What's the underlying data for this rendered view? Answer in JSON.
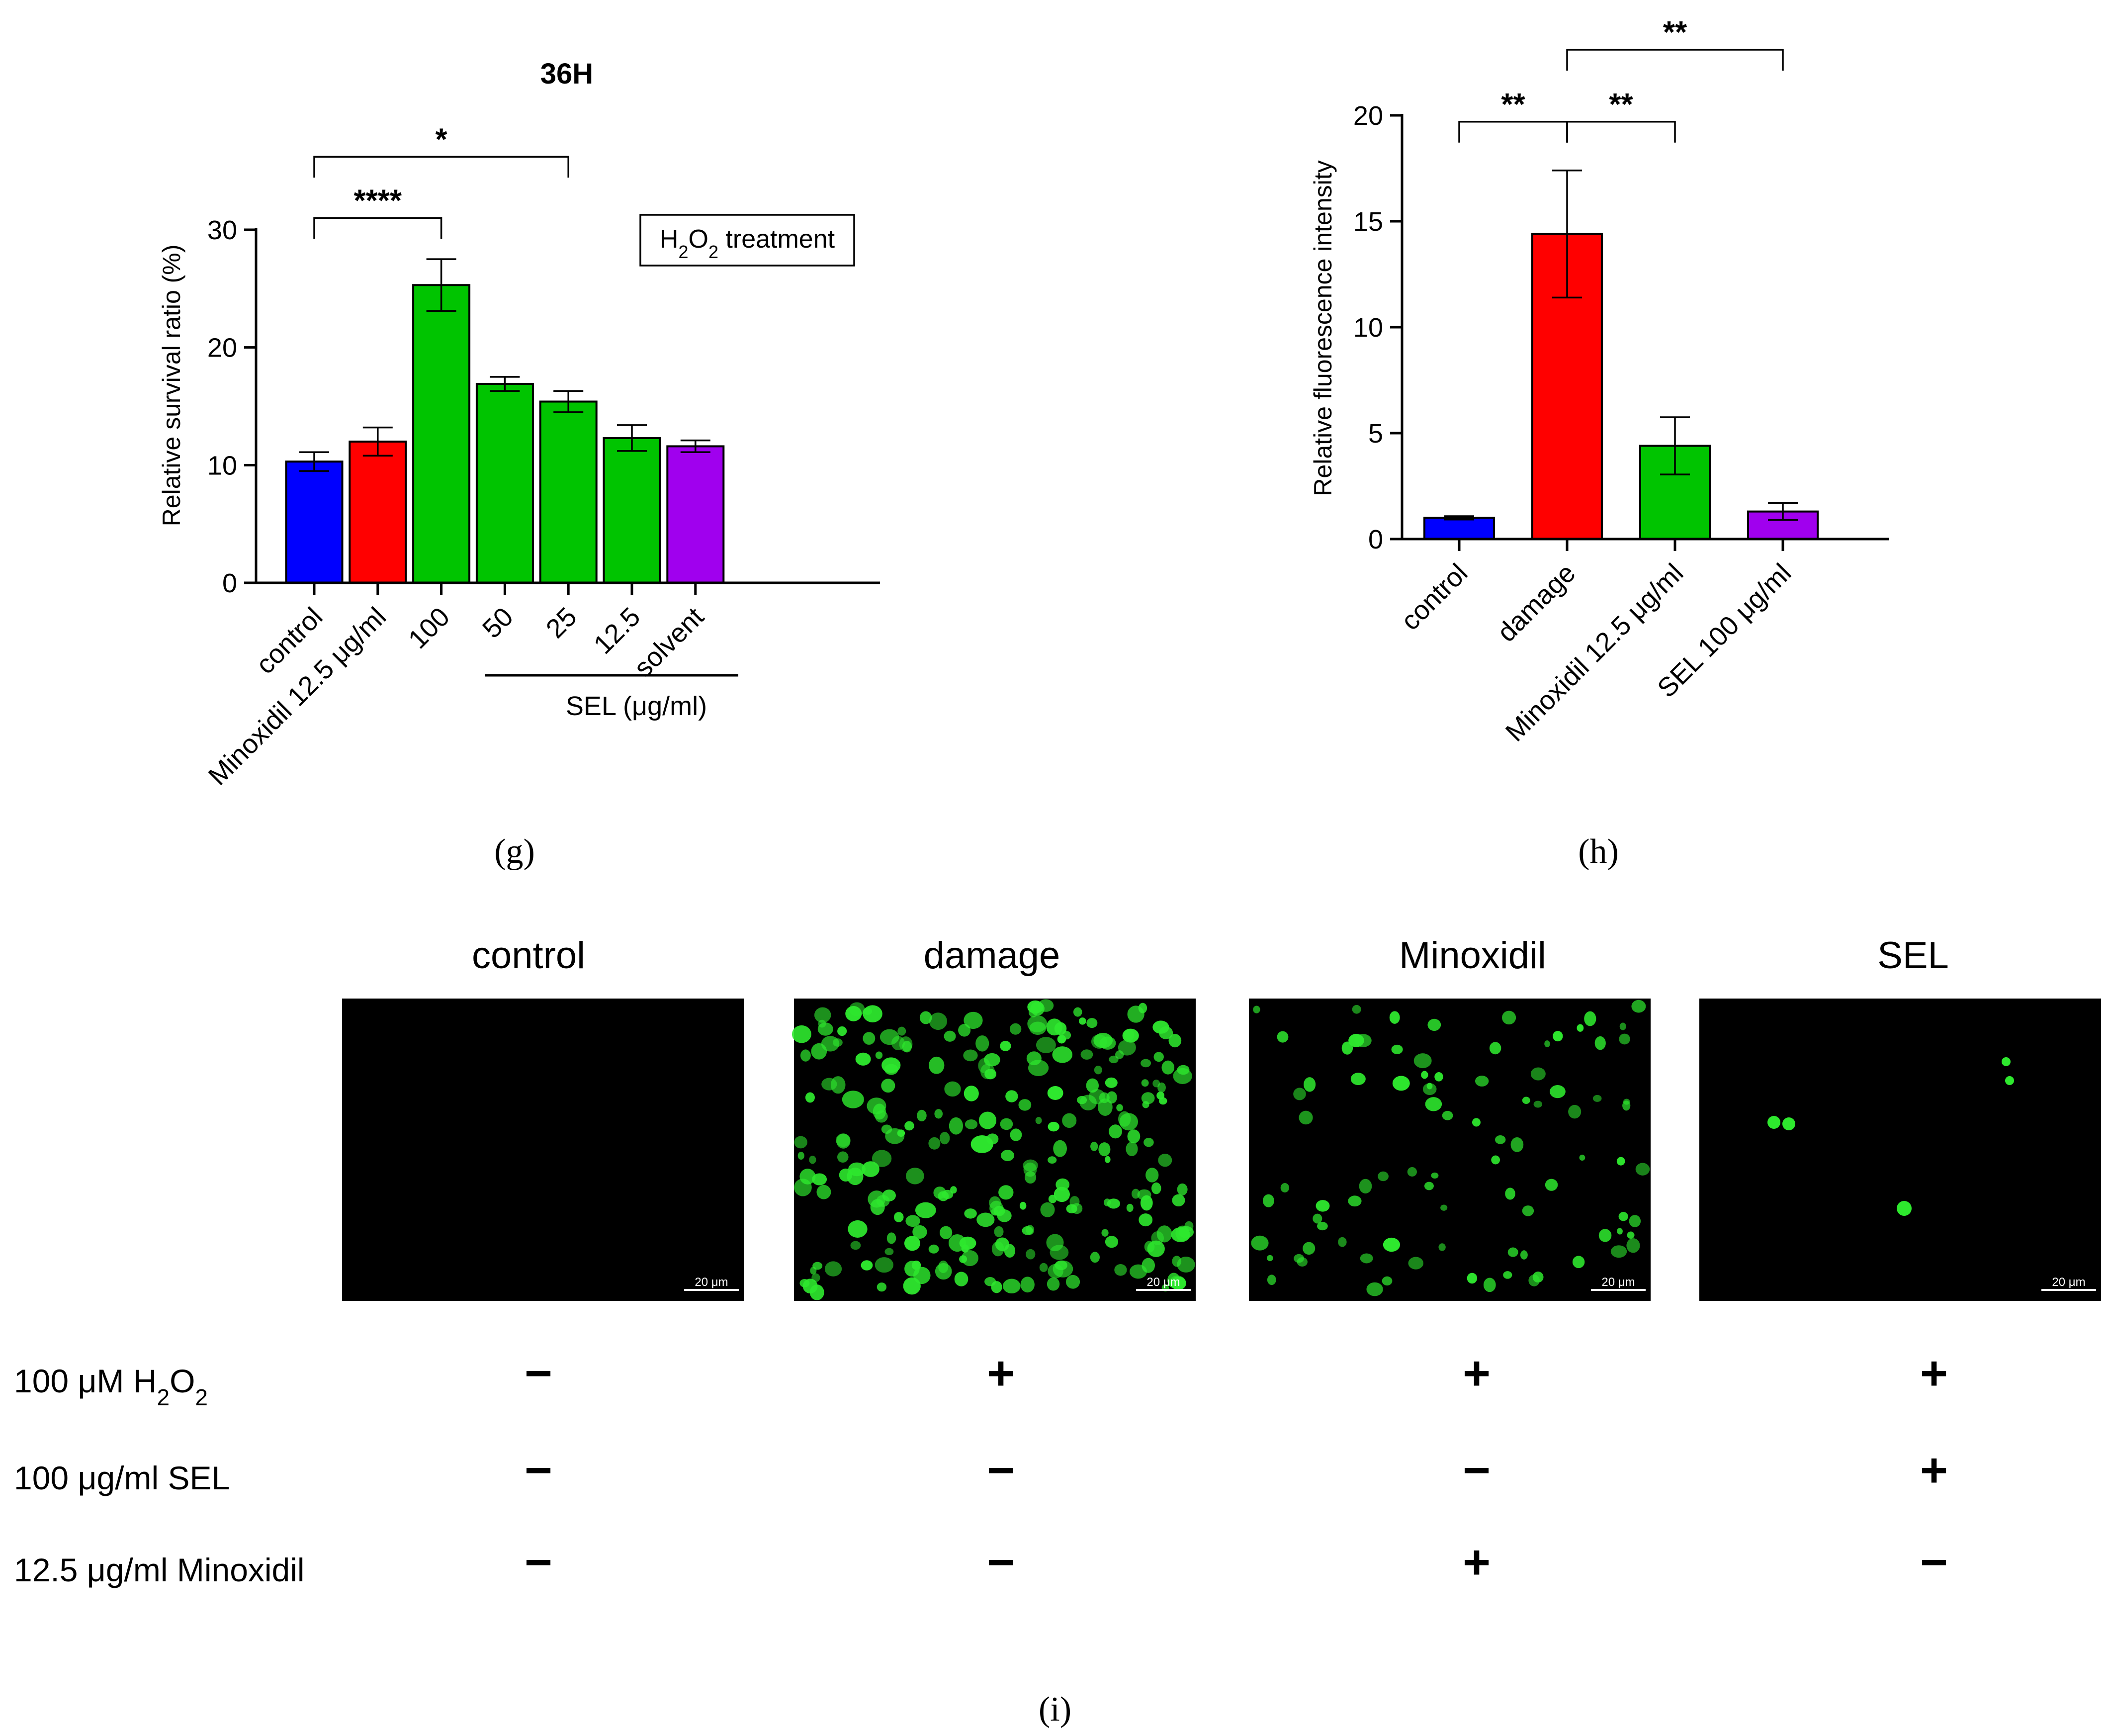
{
  "colors": {
    "blue": "#0000ff",
    "red": "#ff0000",
    "green": "#00c400",
    "purple": "#a000ee",
    "micro_bg": "#000000",
    "cell": "#2ee82e"
  },
  "panel_labels": {
    "g": "(g)",
    "h": "(h)",
    "i": "(i)"
  },
  "chart_data": [
    {
      "type": "bar",
      "title": "36H",
      "ylabel": "Relative survival ratio (%)",
      "ylim": [
        0,
        30
      ],
      "yticks": [
        "0",
        "10",
        "20",
        "30"
      ],
      "categories": [
        "control",
        "Minoxidil 12.5 μg/ml",
        "100",
        "50",
        "25",
        "12.5",
        "solvent"
      ],
      "values": [
        10.3,
        12.0,
        25.3,
        16.9,
        15.4,
        12.3,
        11.6
      ],
      "errors": [
        0.8,
        1.2,
        2.2,
        0.6,
        0.9,
        1.1,
        0.5
      ],
      "bar_colors": [
        "blue",
        "red",
        "green",
        "green",
        "green",
        "green",
        "purple"
      ],
      "group_label": "SEL (μg/ml)",
      "annotation": {
        "pre": "H",
        "sub1": "2",
        "mid": "O",
        "sub2": "2",
        "post": " treatment"
      },
      "significance": [
        {
          "from": 0,
          "to": 2,
          "label": "****",
          "y": 31.0
        },
        {
          "from": 0,
          "to": 4,
          "label": "*",
          "y": 36.2
        }
      ]
    },
    {
      "type": "bar",
      "ylabel": "Relative fluorescence intensity",
      "ylim": [
        0,
        20
      ],
      "yticks": [
        "0",
        "5",
        "10",
        "15",
        "20"
      ],
      "categories": [
        "control",
        "damage",
        "Minoxidil 12.5 μg/ml",
        "SEL 100 μg/ml"
      ],
      "values": [
        1.0,
        14.4,
        4.4,
        1.3
      ],
      "errors": [
        0.08,
        3.0,
        1.35,
        0.4
      ],
      "bar_colors": [
        "blue",
        "red",
        "green",
        "purple"
      ],
      "significance": [
        {
          "from": 0,
          "to": 1,
          "label": "**",
          "y": 19.7
        },
        {
          "from": 1,
          "to": 2,
          "label": "**",
          "y": 19.7
        },
        {
          "from": 1,
          "to": 3,
          "label": "**",
          "y": 23.1
        }
      ]
    }
  ],
  "micrographs": {
    "titles": [
      "control",
      "damage",
      "Minoxidil",
      "SEL"
    ],
    "scale_bar": "20 μm"
  },
  "treatment_table": {
    "rows": [
      {
        "pre": "100 μM H",
        "sub1": "2",
        "mid": "O",
        "sub2": "2",
        "signs": [
          "−",
          "+",
          "+",
          "+"
        ]
      },
      {
        "pre": "100 μg/ml SEL",
        "signs": [
          "−",
          "−",
          "−",
          "+"
        ]
      },
      {
        "pre": "12.5 μg/ml Minoxidil",
        "signs": [
          "−",
          "−",
          "+",
          "−"
        ]
      }
    ]
  }
}
